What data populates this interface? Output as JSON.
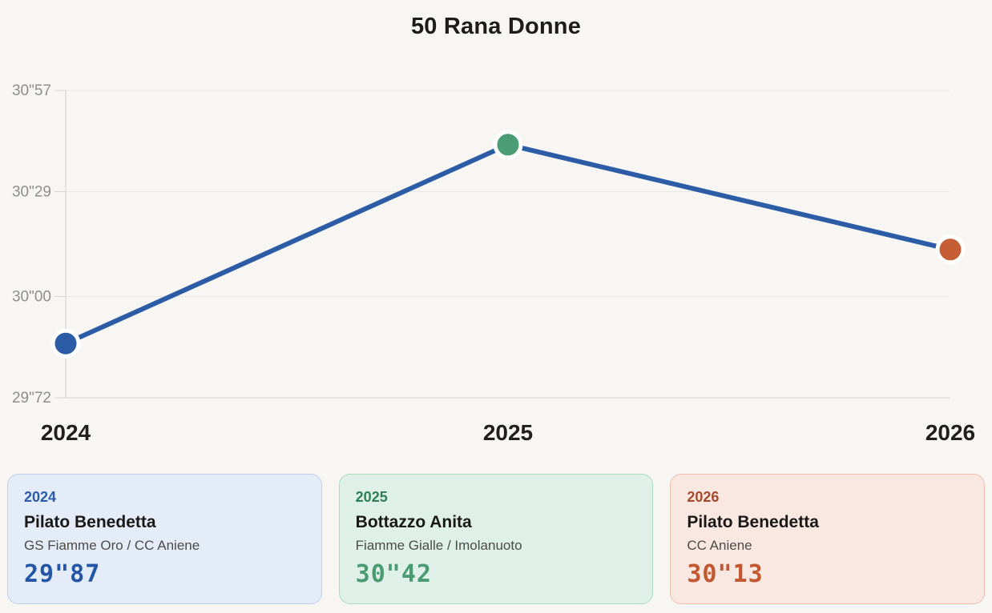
{
  "title": "50 Rana Donne",
  "chart_data": {
    "type": "line",
    "title": "50 Rana Donne",
    "x": [
      "2024",
      "2025",
      "2026"
    ],
    "values": [
      29.87,
      30.42,
      30.13
    ],
    "value_labels": [
      "29\"87",
      "30\"42",
      "30\"13"
    ],
    "ylim": [
      29.72,
      30.57
    ],
    "yticks": [
      29.72,
      30.0,
      30.29,
      30.57
    ],
    "ytick_labels": [
      "29\"72",
      "30\"00",
      "30\"29",
      "30\"57"
    ],
    "xlabel": "",
    "ylabel": "",
    "grid": "horizontal",
    "legend": "none",
    "line_color": "#2c5ca6",
    "point_colors": [
      "#2c5ca6",
      "#4a9d74",
      "#c55d35"
    ]
  },
  "cards": [
    {
      "year": "2024",
      "name": "Pilato Benedetta",
      "team": "GS Fiamme Oro / CC Aniene",
      "time": "29\"87",
      "accent_color": "#2b5ba8",
      "time_color": "#2456a5",
      "bg_color": "#e4ecf8",
      "border_color": "#bccfec"
    },
    {
      "year": "2025",
      "name": "Bottazzo Anita",
      "team": "Fiamme Gialle / Imolanuoto",
      "time": "30\"42",
      "accent_color": "#2f7d5a",
      "time_color": "#4a9a72",
      "bg_color": "#def0e7",
      "border_color": "#a9d9c0"
    },
    {
      "year": "2026",
      "name": "Pilato Benedetta",
      "team": "CC Aniene",
      "time": "30\"13",
      "accent_color": "#a64a2c",
      "time_color": "#c25730",
      "bg_color": "#f9e8e2",
      "border_color": "#ecbfae"
    }
  ]
}
